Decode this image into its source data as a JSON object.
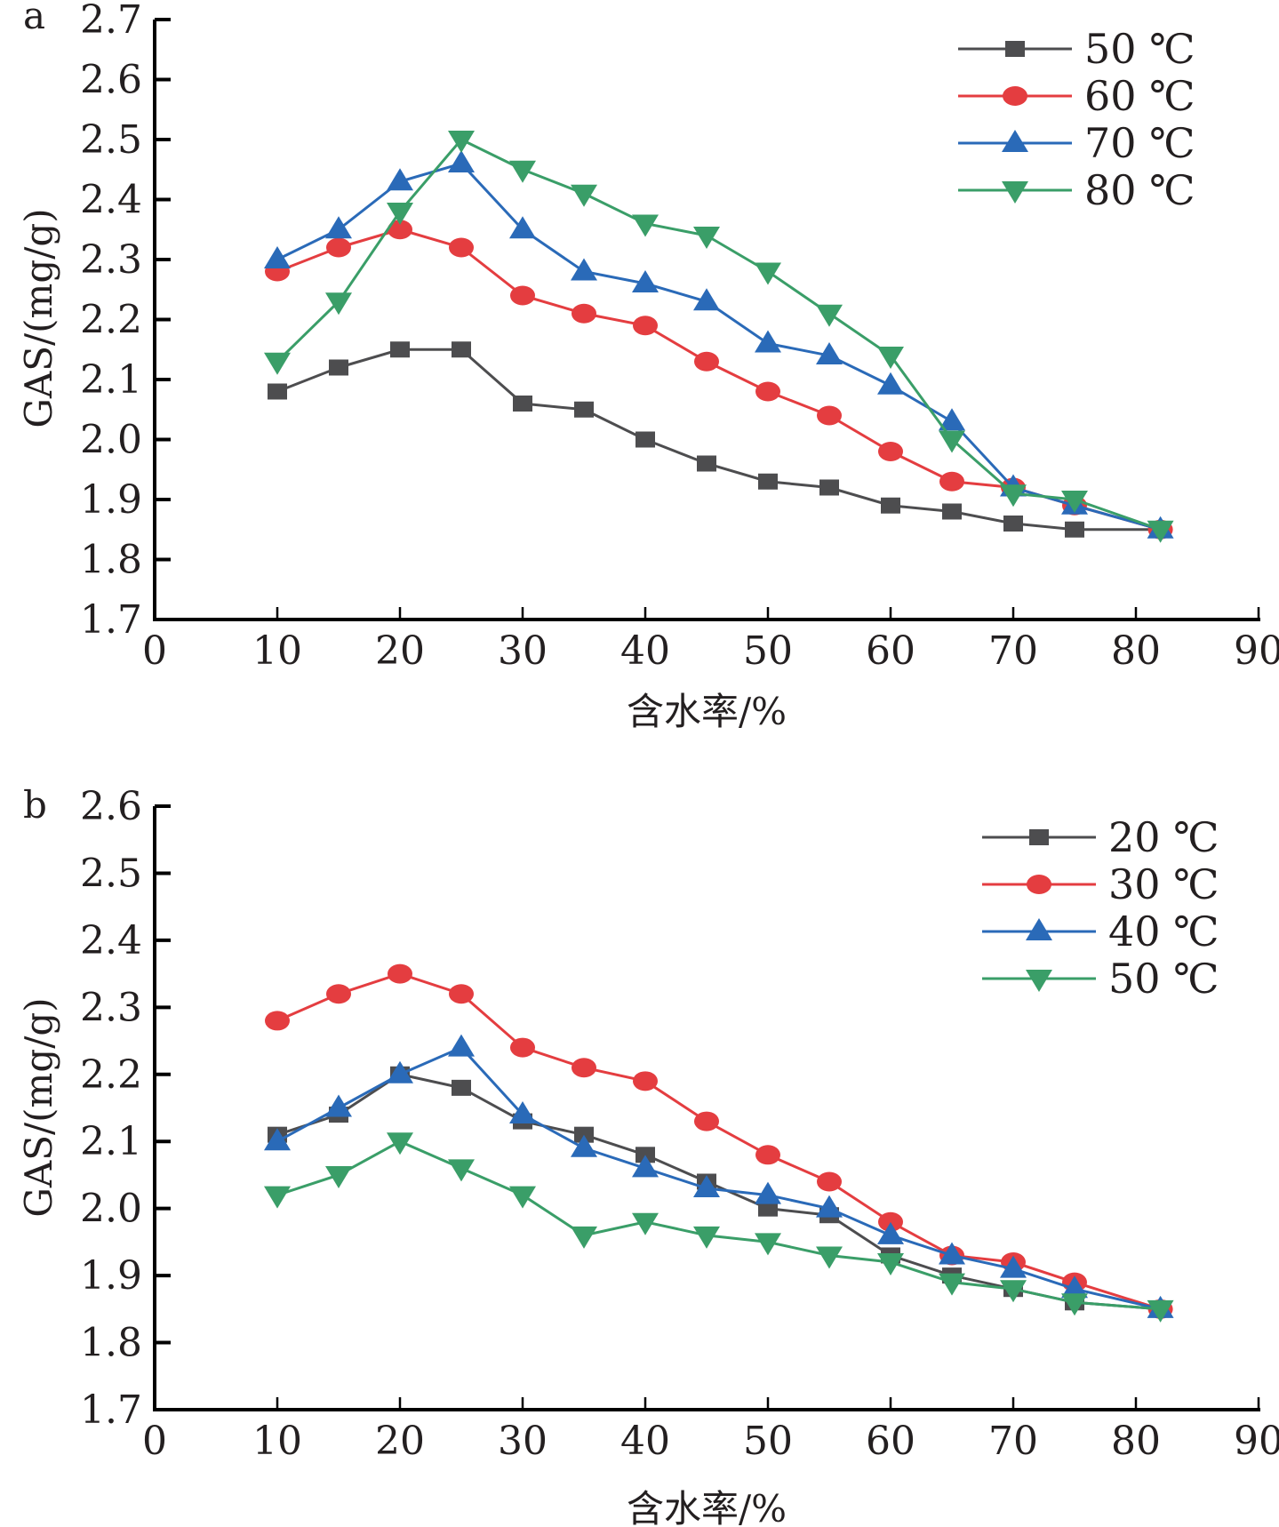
{
  "chart_data": [
    {
      "type": "line",
      "panel_label": "a",
      "title": "",
      "xlabel": "含水率/%",
      "ylabel": "GAS/(mg/g)",
      "xlim": [
        0,
        90
      ],
      "ylim": [
        1.7,
        2.7
      ],
      "x_ticks": [
        0,
        10,
        20,
        30,
        40,
        50,
        60,
        70,
        80,
        90
      ],
      "x_tick_labels": [
        "0",
        "10",
        "20",
        "30",
        "40",
        "50",
        "60",
        "70",
        "80",
        "90"
      ],
      "y_ticks": [
        1.7,
        1.8,
        1.9,
        2.0,
        2.1,
        2.2,
        2.3,
        2.4,
        2.5,
        2.6,
        2.7
      ],
      "y_tick_labels": [
        "1.7",
        "1.8",
        "1.9",
        "2.0",
        "2.1",
        "2.2",
        "2.3",
        "2.4",
        "2.5",
        "2.6",
        "2.7"
      ],
      "grid": false,
      "legend_position": "top-right",
      "x": [
        10,
        15,
        20,
        25,
        30,
        35,
        40,
        45,
        50,
        55,
        60,
        65,
        70,
        75,
        82
      ],
      "series": [
        {
          "name": "50 ℃",
          "color": "#4d4d4f",
          "marker": "square",
          "values": [
            2.08,
            2.12,
            2.15,
            2.15,
            2.06,
            2.05,
            2.0,
            1.96,
            1.93,
            1.92,
            1.89,
            1.88,
            1.86,
            1.85,
            1.85
          ]
        },
        {
          "name": "60 ℃",
          "color": "#e43d40",
          "marker": "circle",
          "values": [
            2.28,
            2.32,
            2.35,
            2.32,
            2.24,
            2.21,
            2.19,
            2.13,
            2.08,
            2.04,
            1.98,
            1.93,
            1.92,
            1.89,
            1.85
          ]
        },
        {
          "name": "70 ℃",
          "color": "#2a6ab8",
          "marker": "triangle-up",
          "values": [
            2.3,
            2.35,
            2.43,
            2.46,
            2.35,
            2.28,
            2.26,
            2.23,
            2.16,
            2.14,
            2.09,
            2.03,
            1.92,
            1.89,
            1.85
          ]
        },
        {
          "name": "80 ℃",
          "color": "#3a9e68",
          "marker": "triangle-down",
          "values": [
            2.13,
            2.23,
            2.38,
            2.5,
            2.45,
            2.41,
            2.36,
            2.34,
            2.28,
            2.21,
            2.14,
            2.0,
            1.91,
            1.9,
            1.85
          ]
        }
      ]
    },
    {
      "type": "line",
      "panel_label": "b",
      "title": "",
      "xlabel": "含水率/%",
      "ylabel": "GAS/(mg/g)",
      "xlim": [
        0,
        90
      ],
      "ylim": [
        1.7,
        2.6
      ],
      "x_ticks": [
        0,
        10,
        20,
        30,
        40,
        50,
        60,
        70,
        80,
        90
      ],
      "x_tick_labels": [
        "0",
        "10",
        "20",
        "30",
        "40",
        "50",
        "60",
        "70",
        "80",
        "90"
      ],
      "y_ticks": [
        1.7,
        1.8,
        1.9,
        2.0,
        2.1,
        2.2,
        2.3,
        2.4,
        2.5,
        2.6
      ],
      "y_tick_labels": [
        "1.7",
        "1.8",
        "1.9",
        "2.0",
        "2.1",
        "2.2",
        "2.3",
        "2.4",
        "2.5",
        "2.6"
      ],
      "grid": false,
      "legend_position": "top-right",
      "x": [
        10,
        15,
        20,
        25,
        30,
        35,
        40,
        45,
        50,
        55,
        60,
        65,
        70,
        75,
        82
      ],
      "series": [
        {
          "name": "20 ℃",
          "color": "#4d4d4f",
          "marker": "square",
          "values": [
            2.11,
            2.14,
            2.2,
            2.18,
            2.13,
            2.11,
            2.08,
            2.04,
            2.0,
            1.99,
            1.93,
            1.9,
            1.88,
            1.86,
            1.85
          ]
        },
        {
          "name": "30 ℃",
          "color": "#e43d40",
          "marker": "circle",
          "values": [
            2.28,
            2.32,
            2.35,
            2.32,
            2.24,
            2.21,
            2.19,
            2.13,
            2.08,
            2.04,
            1.98,
            1.93,
            1.92,
            1.89,
            1.85
          ]
        },
        {
          "name": "40 ℃",
          "color": "#2a6ab8",
          "marker": "triangle-up",
          "values": [
            2.1,
            2.15,
            2.2,
            2.24,
            2.14,
            2.09,
            2.06,
            2.03,
            2.02,
            2.0,
            1.96,
            1.93,
            1.91,
            1.88,
            1.85
          ]
        },
        {
          "name": "50 ℃",
          "color": "#3a9e68",
          "marker": "triangle-down",
          "values": [
            2.02,
            2.05,
            2.1,
            2.06,
            2.02,
            1.96,
            1.98,
            1.96,
            1.95,
            1.93,
            1.92,
            1.89,
            1.88,
            1.86,
            1.85
          ]
        }
      ]
    }
  ]
}
